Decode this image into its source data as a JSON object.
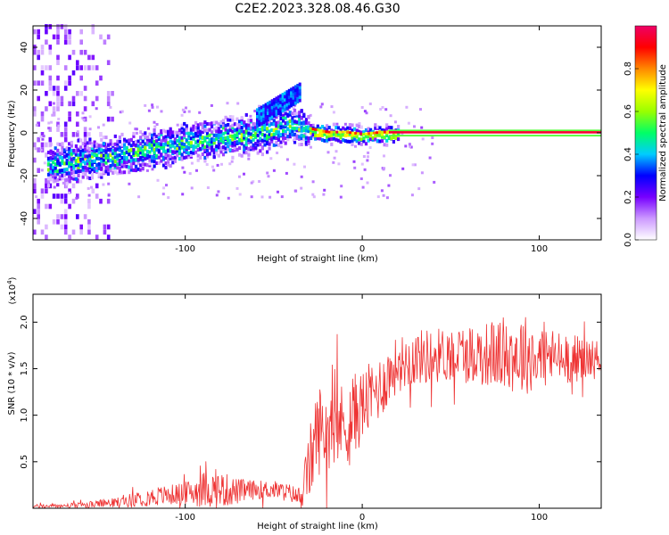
{
  "title": "C2E2.2023.328.08.46.G30",
  "colors": {
    "snr_line": "#ee3333",
    "colormap": [
      "#ffffff",
      "#cc99ff",
      "#7700ff",
      "#0000ff",
      "#00ccff",
      "#00ff66",
      "#99ff00",
      "#ffff00",
      "#ff8800",
      "#ff0000",
      "#ee0066"
    ]
  },
  "chart_data": [
    {
      "type": "heatmap",
      "xlabel": "Height of straight line (km)",
      "ylabel": "Frequency (Hz)",
      "xlim": [
        -186,
        135
      ],
      "ylim": [
        -50,
        50
      ],
      "xticks": [
        -100,
        0,
        100
      ],
      "yticks": [
        -40,
        -20,
        0,
        20,
        40
      ],
      "colorbar": {
        "label": "Normalized spectral amplitude",
        "range": [
          0,
          1
        ],
        "ticks": [
          0.0,
          0.2,
          0.4,
          0.6,
          0.8
        ]
      },
      "ridge": {
        "x": [
          -175,
          -150,
          -125,
          -100,
          -75,
          -55,
          -40,
          -32,
          -20,
          -10,
          0,
          10,
          20,
          135
        ],
        "freq": [
          -14,
          -11,
          -8,
          -4,
          -1,
          1,
          5,
          2,
          0,
          0,
          -1,
          0,
          0,
          0
        ]
      }
    },
    {
      "type": "line",
      "xlabel": "Height of straight line (km)",
      "ylabel": "SNR (10 * v/v)",
      "yunit": "(x10",
      "yunit_exp": "4",
      "yunit_close": ")",
      "xlim": [
        -186,
        135
      ],
      "ylim": [
        0,
        2.3
      ],
      "xticks": [
        -100,
        0,
        100
      ],
      "yticks": [
        0.5,
        1.0,
        1.5,
        2.0
      ],
      "envelope": {
        "x": [
          -186,
          -160,
          -140,
          -120,
          -100,
          -90,
          -80,
          -70,
          -60,
          -50,
          -40,
          -35,
          -30,
          -25,
          -20,
          -15,
          -10,
          -5,
          0,
          10,
          20,
          30,
          50,
          70,
          90,
          110,
          135
        ],
        "mean": [
          0.02,
          0.03,
          0.06,
          0.12,
          0.16,
          0.2,
          0.2,
          0.18,
          0.2,
          0.2,
          0.16,
          0.1,
          0.45,
          0.85,
          0.85,
          0.9,
          0.9,
          1.0,
          1.1,
          1.3,
          1.55,
          1.62,
          1.66,
          1.66,
          1.66,
          1.62,
          1.6
        ],
        "spread": [
          0.02,
          0.03,
          0.05,
          0.1,
          0.12,
          0.2,
          0.2,
          0.14,
          0.1,
          0.1,
          0.1,
          0.1,
          0.4,
          0.5,
          0.45,
          0.45,
          0.45,
          0.45,
          0.4,
          0.35,
          0.3,
          0.3,
          0.3,
          0.35,
          0.45,
          0.3,
          0.2
        ]
      }
    }
  ]
}
